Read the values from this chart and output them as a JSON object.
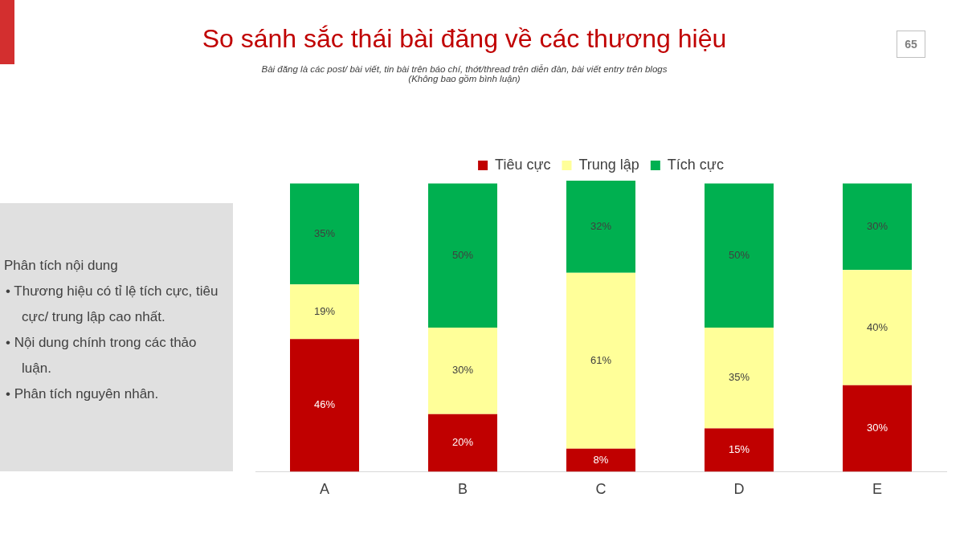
{
  "chart_data": {
    "type": "bar",
    "title": "So sánh sắc thái bài đăng về các thương hiệu",
    "subtitle": "Bài đăng là các post/ bài viết, tin bài trên báo chí, thớt/thread trên diễn đàn, bài viết entry trên blogs\n(Không bao gồm bình luận)",
    "categories": [
      "A",
      "B",
      "C",
      "D",
      "E"
    ],
    "stacked": true,
    "legend": "top",
    "grid": false,
    "series": [
      {
        "name": "Tiêu cực",
        "color": "#c00000",
        "values": [
          46,
          20,
          8,
          15,
          30
        ],
        "value_labels": [
          "46%",
          "20%",
          "8%",
          "15%",
          "30%"
        ]
      },
      {
        "name": "Trung lập",
        "color": "#ffff99",
        "values": [
          19,
          30,
          61,
          35,
          40
        ],
        "value_labels": [
          "19%",
          "30%",
          "61%",
          "35%",
          "40%"
        ]
      },
      {
        "name": "Tích cực",
        "color": "#00b050",
        "values": [
          35,
          50,
          32,
          50,
          30
        ],
        "value_labels": [
          "35%",
          "50%",
          "32%",
          "50%",
          "30%"
        ]
      }
    ],
    "annotations": [
      "65",
      "Phân tích nội dung",
      "• Thương hiệu có tỉ lệ tích cực, tiêu cực/ trung lập cao nhất.",
      "• Nội dung chính trong các thảo luận.",
      "• Phân tích nguyên nhân."
    ]
  }
}
